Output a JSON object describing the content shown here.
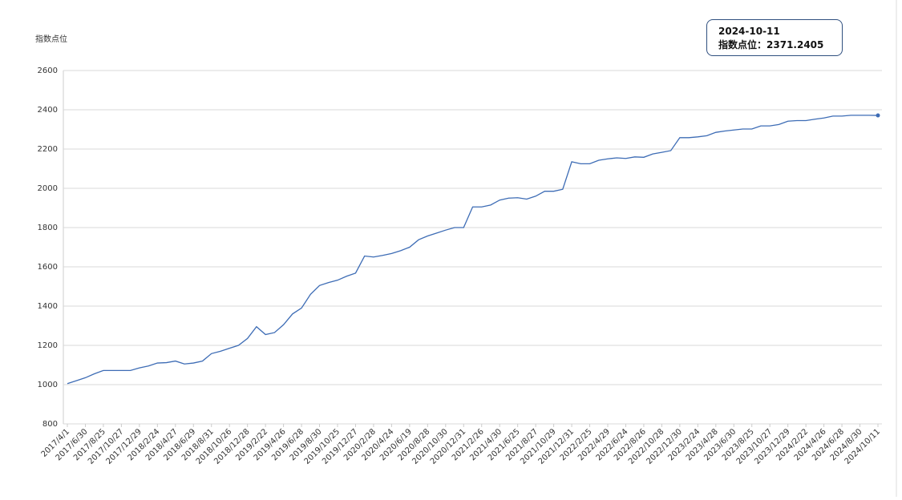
{
  "chart_data": {
    "type": "line",
    "y_label": "指数点位",
    "tooltip": {
      "title": "2024-10-11",
      "label": "指数点位："
    },
    "color": "#3d6cb5",
    "categories": [
      "2017/4/1",
      null,
      "2017/6/30",
      null,
      "2017/8/25",
      null,
      "2017/10/27",
      null,
      "2017/12/29",
      null,
      "2018/2/24",
      null,
      "2018/4/27",
      null,
      "2018/6/29",
      null,
      "2018/8/31",
      null,
      "2018/10/26",
      null,
      "2018/12/28",
      null,
      "2019/2/22",
      null,
      "2019/4/26",
      null,
      "2019/6/28",
      null,
      "2019/8/30",
      null,
      "2019/10/25",
      null,
      "2019/12/27",
      null,
      "2020/2/28",
      null,
      "2020/4/24",
      null,
      "2020/6/19",
      null,
      "2020/8/28",
      null,
      "2020/10/30",
      null,
      "2020/12/31",
      null,
      "2021/2/26",
      null,
      "2021/4/30",
      null,
      "2021/6/25",
      null,
      "2021/8/27",
      null,
      "2021/10/29",
      null,
      "2021/12/31",
      null,
      "2022/2/25",
      null,
      "2022/4/29",
      null,
      "2022/6/24",
      null,
      "2022/8/26",
      null,
      "2022/10/28",
      null,
      "2022/12/30",
      null,
      "2023/2/24",
      null,
      "2023/4/28",
      null,
      "2023/6/30",
      null,
      "2023/8/25",
      null,
      "2023/10/27",
      null,
      "2023/12/29",
      null,
      "2024/2/22",
      null,
      "2024/4/26",
      null,
      "2024/6/28",
      null,
      "2024/8/30",
      null,
      "2024/10/11"
    ],
    "values": [
      1005,
      1020,
      1035,
      1055,
      1072,
      1072,
      1072,
      1072,
      1085,
      1095,
      1110,
      1112,
      1120,
      1105,
      1110,
      1120,
      1158,
      1170,
      1185,
      1200,
      1235,
      1295,
      1255,
      1265,
      1305,
      1360,
      1390,
      1460,
      1505,
      1520,
      1532,
      1552,
      1568,
      1655,
      1650,
      1658,
      1668,
      1682,
      1700,
      1738,
      1757,
      1772,
      1787,
      1800,
      1800,
      1905,
      1905,
      1915,
      1940,
      1950,
      1952,
      1945,
      1960,
      1985,
      1985,
      1995,
      2135,
      2125,
      2125,
      2143,
      2150,
      2155,
      2152,
      2160,
      2158,
      2175,
      2183,
      2192,
      2258,
      2258,
      2262,
      2268,
      2285,
      2292,
      2297,
      2302,
      2302,
      2318,
      2318,
      2325,
      2342,
      2345,
      2345,
      2352,
      2358,
      2368,
      2368,
      2372,
      2372,
      2372,
      2371.2405
    ],
    "ylim": [
      800,
      2600
    ],
    "yticks": [
      800,
      1000,
      1200,
      1400,
      1600,
      1800,
      2000,
      2200,
      2400,
      2600
    ],
    "grid": true
  }
}
